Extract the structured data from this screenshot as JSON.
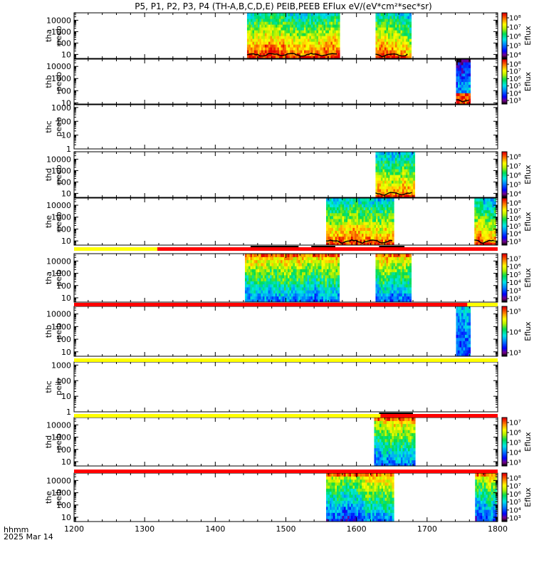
{
  "title": "P5, P1, P2, P3, P4 (TH-A,B,C,D,E) PEIB,PEEB EFlux eV/(eV*cm²*sec*sr)",
  "footer": {
    "hhmm": "hhmm",
    "date": "2025 Mar 14"
  },
  "colors": {
    "bar_yellow": "#ffff00",
    "bar_red": "#ff0000",
    "axis": "#000000",
    "background": "#ffffff"
  },
  "chart_data": {
    "type": "heatmap",
    "x_range": [
      1200,
      1800
    ],
    "x_ticks": [
      1200,
      1300,
      1400,
      1500,
      1600,
      1700,
      1800
    ],
    "x_tick_labels": [
      "1200",
      "1300",
      "1400",
      "1500",
      "1600",
      "1700",
      "1800"
    ],
    "x_minor_step": 20,
    "colorbar_label": "Eflux",
    "panels": [
      {
        "probe": "tha",
        "product": "peeb",
        "ylabel": [
          "tha",
          "peeb"
        ],
        "y_ticks": [
          "10000",
          "1000",
          "100",
          "10"
        ],
        "ylog": [
          0.65,
          4.65
        ],
        "data_intervals": [
          [
            1445,
            1575
          ],
          [
            1627,
            1675
          ]
        ],
        "colorbar": true,
        "colorbar_ticks": [
          "10⁸",
          "10⁷",
          "10⁶",
          "10⁵",
          "10⁴"
        ],
        "spectra": "electron",
        "potential_line": true
      },
      {
        "probe": "thb",
        "product": "peeb",
        "ylabel": [
          "thb",
          "peeb"
        ],
        "y_ticks": [
          "10000",
          "1000",
          "100",
          "10"
        ],
        "ylog": [
          0.9,
          4.6
        ],
        "data_intervals": [
          [
            1741,
            1760
          ]
        ],
        "colorbar": true,
        "colorbar_ticks": [
          "10⁸",
          "10⁷",
          "10⁶",
          "10⁵",
          "10⁴",
          "10³"
        ],
        "spectra": "electron_b",
        "potential_line": true
      },
      {
        "probe": "thc",
        "product": "peeb",
        "ylabel": [
          "thc",
          "peeb"
        ],
        "y_ticks": [
          "1000",
          "100",
          "10",
          "1"
        ],
        "ylog": [
          0,
          3.2
        ],
        "data_intervals": [],
        "colorbar": false,
        "colorbar_ticks": [],
        "spectra": "none",
        "potential_line": false
      },
      {
        "probe": "thd",
        "product": "peeb",
        "ylabel": [
          "thd",
          "peeb"
        ],
        "y_ticks": [
          "10000",
          "1000",
          "100",
          "10"
        ],
        "ylog": [
          0.65,
          4.65
        ],
        "data_intervals": [
          [
            1627,
            1680
          ]
        ],
        "colorbar": true,
        "colorbar_ticks": [
          "10⁸",
          "10⁷",
          "10⁶",
          "10⁵",
          "10⁴"
        ],
        "spectra": "electron",
        "potential_line": true
      },
      {
        "probe": "the",
        "product": "peeb",
        "ylabel": [
          "the",
          "peeb"
        ],
        "y_ticks": [
          "10000",
          "1000",
          "100",
          "10"
        ],
        "ylog": [
          0.65,
          4.6
        ],
        "data_intervals": [
          [
            1557,
            1652
          ],
          [
            1767,
            1797
          ]
        ],
        "colorbar": true,
        "colorbar_ticks": [
          "10⁸",
          "10⁷",
          "10⁶",
          "10⁵",
          "10⁴",
          "10³"
        ],
        "spectra": "electron",
        "potential_line": true
      },
      {
        "probe": "tha",
        "product": "peib",
        "ylabel": [
          "tha",
          "peib"
        ],
        "y_ticks": [
          "10000",
          "1000",
          "100",
          "10"
        ],
        "ylog": [
          0.65,
          4.6
        ],
        "data_intervals": [
          [
            1442,
            1575
          ],
          [
            1627,
            1675
          ]
        ],
        "colorbar": true,
        "colorbar_ticks": [
          "10⁷",
          "10⁶",
          "10⁵",
          "10⁴",
          "10³",
          "10²"
        ],
        "spectra": "ion",
        "potential_line": false
      },
      {
        "probe": "thb",
        "product": "peib",
        "ylabel": [
          "thb",
          "peib"
        ],
        "y_ticks": [
          "10000",
          "1000",
          "100",
          "10"
        ],
        "ylog": [
          0.65,
          4.6
        ],
        "data_intervals": [
          [
            1741,
            1760
          ]
        ],
        "colorbar": true,
        "colorbar_ticks": [
          "10⁵",
          "10⁴",
          "10³"
        ],
        "spectra": "ion_blue",
        "potential_line": false
      },
      {
        "probe": "thc",
        "product": "peib",
        "ylabel": [
          "thc",
          "peib"
        ],
        "y_ticks": [
          "1000",
          "100",
          "10",
          "1"
        ],
        "ylog": [
          0,
          3.2
        ],
        "data_intervals": [],
        "colorbar": false,
        "colorbar_ticks": [],
        "spectra": "none",
        "potential_line": false
      },
      {
        "probe": "thd",
        "product": "peib",
        "ylabel": [
          "thd",
          "peib"
        ],
        "y_ticks": [
          "10000",
          "1000",
          "100",
          "10"
        ],
        "ylog": [
          0.65,
          4.6
        ],
        "data_intervals": [
          [
            1625,
            1682
          ]
        ],
        "colorbar": true,
        "colorbar_ticks": [
          "10⁷",
          "10⁶",
          "10⁵",
          "10⁴",
          "10³"
        ],
        "spectra": "ion",
        "potential_line": false
      },
      {
        "probe": "the",
        "product": "peib",
        "ylabel": [
          "the",
          "peib"
        ],
        "y_ticks": [
          "10000",
          "1000",
          "100",
          "10"
        ],
        "ylog": [
          0.65,
          4.6
        ],
        "data_intervals": [
          [
            1557,
            1652
          ],
          [
            1768,
            1797
          ]
        ],
        "colorbar": true,
        "colorbar_ticks": [
          "10⁸",
          "10⁷",
          "10⁶",
          "10⁵",
          "10⁴",
          "10³"
        ],
        "spectra": "ion",
        "potential_line": false
      }
    ],
    "mode_bars": [
      {
        "before_panel": 5,
        "segments": [
          {
            "x0": 1200,
            "x1": 1318,
            "color": "yellow"
          },
          {
            "x0": 1318,
            "x1": 1800,
            "color": "red"
          }
        ],
        "ticks": [
          [
            1450,
            1518
          ],
          [
            1536,
            1570
          ],
          [
            1632,
            1668
          ]
        ]
      },
      {
        "before_panel": 6,
        "segments": [
          {
            "x0": 1200,
            "x1": 1757,
            "color": "red"
          },
          {
            "x0": 1757,
            "x1": 1800,
            "color": "yellow"
          }
        ],
        "ticks": []
      },
      {
        "before_panel": 7,
        "segments": [
          {
            "x0": 1200,
            "x1": 1800,
            "color": "yellow"
          }
        ],
        "ticks": []
      },
      {
        "before_panel": 8,
        "segments": [
          {
            "x0": 1200,
            "x1": 1634,
            "color": "yellow"
          },
          {
            "x0": 1634,
            "x1": 1800,
            "color": "red"
          }
        ],
        "ticks": [
          [
            1632,
            1680
          ]
        ]
      },
      {
        "before_panel": 9,
        "segments": [
          {
            "x0": 1200,
            "x1": 1800,
            "color": "red"
          }
        ],
        "ticks": []
      }
    ]
  }
}
